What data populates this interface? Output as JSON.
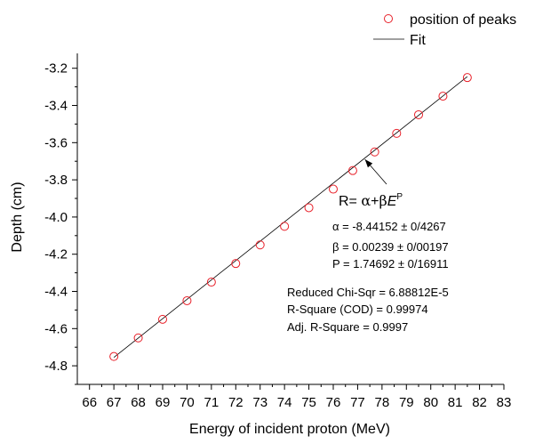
{
  "chart_data": {
    "type": "scatter",
    "title": "",
    "xlabel": "Energy of incident proton (MeV)",
    "ylabel": "Depth (cm)",
    "xlim": [
      65.5,
      83
    ],
    "ylim": [
      -4.9,
      -3.12
    ],
    "x_ticks": [
      "66",
      "67",
      "68",
      "69",
      "70",
      "71",
      "72",
      "73",
      "74",
      "75",
      "76",
      "77",
      "78",
      "79",
      "80",
      "81",
      "82",
      "83"
    ],
    "y_ticks": [
      "-3.2",
      "-3.4",
      "-3.6",
      "-3.8",
      "-4.0",
      "-4.2",
      "-4.4",
      "-4.6",
      "-4.8"
    ],
    "legend_position": "top-right",
    "grid": false,
    "series": [
      {
        "name": "position of peaks",
        "kind": "scatter",
        "color": "#e8212a",
        "marker": "hollow-circle",
        "x": [
          67,
          68,
          69,
          70,
          71,
          72,
          73,
          74,
          75,
          76,
          76.8,
          77.7,
          78.6,
          79.5,
          80.5,
          81.5
        ],
        "y": [
          -4.75,
          -4.65,
          -4.55,
          -4.45,
          -4.35,
          -4.25,
          -4.15,
          -4.05,
          -3.95,
          -3.85,
          -3.75,
          -3.65,
          -3.55,
          -3.45,
          -3.35,
          -3.25
        ]
      },
      {
        "name": "Fit",
        "kind": "line",
        "color": "#000000",
        "x": [
          67,
          81.5
        ],
        "y": [
          -4.755,
          -3.245
        ]
      }
    ],
    "annotations": {
      "formula_prefix": "R= ",
      "formula_alpha": "α",
      "formula_plus": "+",
      "formula_beta": "β",
      "formula_E": "E",
      "formula_P": "P",
      "arrow_target": {
        "x": 77.3,
        "y": -3.69
      },
      "alpha_line": "α = -8.44152 ± 0/4267",
      "beta_line": "β = 0.00239 ± 0/00197",
      "p_line": "P = 1.74692 ± 0/16911",
      "stats": [
        "Reduced Chi-Sqr = 6.88812E-5",
        "R-Square (COD) = 0.99974",
        "Adj. R-Square = 0.9997"
      ]
    }
  }
}
